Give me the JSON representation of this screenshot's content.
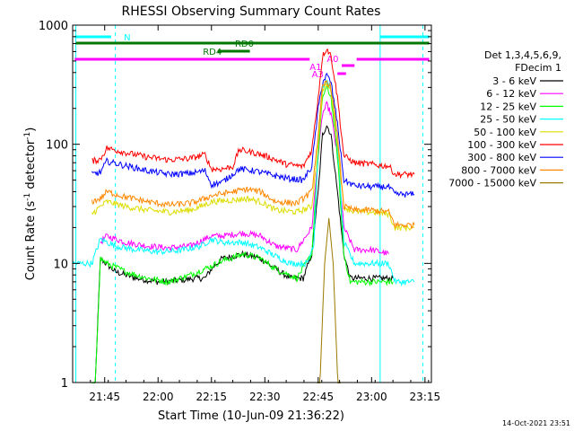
{
  "chart_data": {
    "type": "line",
    "title": "RHESSI Observing Summary Count Rates",
    "xlabel": "Start Time (10-Jun-09 21:36:22)",
    "ylabel_main": "Count Rate (s",
    "ylabel_sup": "-1",
    "ylabel_tail": " detector",
    "ylabel_close": ")",
    "yscale": "log",
    "ylim": [
      1,
      1000
    ],
    "xlim_minutes": [
      21.6,
      23.28
    ],
    "x_ticks": [
      {
        "label": "21:45",
        "t": 21.75
      },
      {
        "label": "22:00",
        "t": 22.0
      },
      {
        "label": "22:15",
        "t": 22.25
      },
      {
        "label": "22:30",
        "t": 22.5
      },
      {
        "label": "22:45",
        "t": 22.75
      },
      {
        "label": "23:00",
        "t": 23.0
      },
      {
        "label": "23:15",
        "t": 23.25
      }
    ],
    "y_ticks": [
      {
        "label": "1",
        "v": 1
      },
      {
        "label": "10",
        "v": 10
      },
      {
        "label": "100",
        "v": 100
      },
      {
        "label": "1000",
        "v": 1000
      }
    ],
    "legend_header": [
      "Det 1,3,4,5,6,9,",
      "FDecim 1"
    ],
    "series": [
      {
        "name": "3 - 6 keV",
        "color": "#000000",
        "points": [
          [
            21.69,
            0.2
          ],
          [
            21.73,
            11
          ],
          [
            21.8,
            8.5
          ],
          [
            21.9,
            7.5
          ],
          [
            22.0,
            7
          ],
          [
            22.1,
            7.2
          ],
          [
            22.18,
            7.5
          ],
          [
            22.22,
            7.5
          ],
          [
            22.25,
            9
          ],
          [
            22.3,
            11
          ],
          [
            22.4,
            12
          ],
          [
            22.48,
            11
          ],
          [
            22.55,
            9
          ],
          [
            22.62,
            7.5
          ],
          [
            22.68,
            7.5
          ],
          [
            22.72,
            12
          ],
          [
            22.75,
            40
          ],
          [
            22.77,
            120
          ],
          [
            22.79,
            145
          ],
          [
            22.81,
            120
          ],
          [
            22.84,
            40
          ],
          [
            22.87,
            12
          ],
          [
            22.9,
            7.5
          ],
          [
            22.95,
            7.5
          ],
          [
            23.05,
            7.5
          ],
          [
            23.1,
            7.5
          ]
        ]
      },
      {
        "name": "6 - 12 keV",
        "color": "#ff00ff",
        "points": [
          [
            21.73,
            15
          ],
          [
            21.76,
            17
          ],
          [
            21.85,
            15
          ],
          [
            21.95,
            14
          ],
          [
            22.05,
            13.5
          ],
          [
            22.15,
            14
          ],
          [
            22.25,
            17
          ],
          [
            22.3,
            17
          ],
          [
            22.4,
            18
          ],
          [
            22.48,
            17
          ],
          [
            22.55,
            14
          ],
          [
            22.65,
            13
          ],
          [
            22.72,
            20
          ],
          [
            22.75,
            80
          ],
          [
            22.77,
            180
          ],
          [
            22.79,
            215
          ],
          [
            22.81,
            180
          ],
          [
            22.84,
            80
          ],
          [
            22.87,
            20
          ],
          [
            22.92,
            13
          ],
          [
            23.0,
            13
          ],
          [
            23.08,
            12
          ]
        ]
      },
      {
        "name": "12 - 25 keV",
        "color": "#00ff00",
        "points": [
          [
            21.69,
            0.2
          ],
          [
            21.73,
            11
          ],
          [
            21.76,
            10
          ],
          [
            21.85,
            8.5
          ],
          [
            21.95,
            7.5
          ],
          [
            22.05,
            7
          ],
          [
            22.15,
            8
          ],
          [
            22.25,
            9.5
          ],
          [
            22.3,
            10.5
          ],
          [
            22.4,
            12
          ],
          [
            22.48,
            11
          ],
          [
            22.55,
            9
          ],
          [
            22.65,
            7.5
          ],
          [
            22.72,
            12
          ],
          [
            22.75,
            80
          ],
          [
            22.77,
            250
          ],
          [
            22.79,
            300
          ],
          [
            22.81,
            250
          ],
          [
            22.84,
            80
          ],
          [
            22.87,
            12
          ],
          [
            22.9,
            7
          ],
          [
            23.0,
            7
          ],
          [
            23.1,
            7
          ]
        ]
      },
      {
        "name": "25 - 50 keV",
        "color": "#00ffff",
        "points": [
          [
            21.6,
            10
          ],
          [
            21.69,
            10
          ],
          [
            21.73,
            16
          ],
          [
            21.8,
            14
          ],
          [
            21.9,
            13
          ],
          [
            22.0,
            12.5
          ],
          [
            22.1,
            12.8
          ],
          [
            22.2,
            14
          ],
          [
            22.25,
            16
          ],
          [
            22.3,
            15
          ],
          [
            22.4,
            15
          ],
          [
            22.48,
            13.5
          ],
          [
            22.55,
            11.5
          ],
          [
            22.62,
            10
          ],
          [
            22.7,
            10
          ],
          [
            22.73,
            15
          ],
          [
            22.75,
            100
          ],
          [
            22.77,
            300
          ],
          [
            22.79,
            330
          ],
          [
            22.81,
            300
          ],
          [
            22.84,
            100
          ],
          [
            22.87,
            15
          ],
          [
            22.92,
            10
          ],
          [
            23.0,
            10
          ],
          [
            23.08,
            10
          ],
          [
            23.11,
            7
          ],
          [
            23.2,
            7
          ]
        ]
      },
      {
        "name": "50 - 100 keV",
        "color": "#dddd00",
        "points": [
          [
            21.69,
            26
          ],
          [
            21.73,
            30
          ],
          [
            21.76,
            33
          ],
          [
            21.85,
            30
          ],
          [
            21.95,
            28
          ],
          [
            22.05,
            27
          ],
          [
            22.15,
            28
          ],
          [
            22.2,
            30
          ],
          [
            22.25,
            33
          ],
          [
            22.35,
            34
          ],
          [
            22.42,
            35
          ],
          [
            22.48,
            33
          ],
          [
            22.55,
            28
          ],
          [
            22.65,
            27
          ],
          [
            22.72,
            30
          ],
          [
            22.75,
            100
          ],
          [
            22.77,
            280
          ],
          [
            22.79,
            320
          ],
          [
            22.81,
            280
          ],
          [
            22.84,
            100
          ],
          [
            22.87,
            30
          ],
          [
            22.92,
            27
          ],
          [
            23.0,
            27
          ],
          [
            23.08,
            26
          ],
          [
            23.11,
            20
          ],
          [
            23.2,
            20
          ]
        ]
      },
      {
        "name": "100 - 300 keV",
        "color": "#ff0000",
        "points": [
          [
            21.69,
            72
          ],
          [
            21.73,
            75
          ],
          [
            21.76,
            93
          ],
          [
            21.85,
            85
          ],
          [
            21.95,
            78
          ],
          [
            22.05,
            74
          ],
          [
            22.15,
            76
          ],
          [
            22.22,
            82
          ],
          [
            22.25,
            62
          ],
          [
            22.3,
            62
          ],
          [
            22.35,
            65
          ],
          [
            22.38,
            90
          ],
          [
            22.45,
            85
          ],
          [
            22.52,
            78
          ],
          [
            22.6,
            68
          ],
          [
            22.68,
            65
          ],
          [
            22.72,
            90
          ],
          [
            22.75,
            250
          ],
          [
            22.77,
            550
          ],
          [
            22.79,
            640
          ],
          [
            22.81,
            550
          ],
          [
            22.84,
            250
          ],
          [
            22.87,
            80
          ],
          [
            22.92,
            70
          ],
          [
            23.0,
            68
          ],
          [
            23.05,
            66
          ],
          [
            23.08,
            66
          ],
          [
            23.11,
            56
          ],
          [
            23.2,
            56
          ]
        ]
      },
      {
        "name": "300 - 800 keV",
        "color": "#0000ff",
        "points": [
          [
            21.69,
            56
          ],
          [
            21.73,
            58
          ],
          [
            21.76,
            72
          ],
          [
            21.85,
            66
          ],
          [
            21.95,
            60
          ],
          [
            22.05,
            56
          ],
          [
            22.15,
            57
          ],
          [
            22.22,
            60
          ],
          [
            22.25,
            46
          ],
          [
            22.3,
            48
          ],
          [
            22.38,
            62
          ],
          [
            22.45,
            60
          ],
          [
            22.52,
            56
          ],
          [
            22.6,
            52
          ],
          [
            22.68,
            50
          ],
          [
            22.72,
            65
          ],
          [
            22.75,
            200
          ],
          [
            22.77,
            330
          ],
          [
            22.79,
            380
          ],
          [
            22.81,
            330
          ],
          [
            22.84,
            150
          ],
          [
            22.87,
            50
          ],
          [
            22.92,
            45
          ],
          [
            23.0,
            44
          ],
          [
            23.08,
            44
          ],
          [
            23.11,
            38
          ],
          [
            23.2,
            38
          ]
        ]
      },
      {
        "name": "800 - 7000 keV",
        "color": "#ff8800",
        "points": [
          [
            21.69,
            33
          ],
          [
            21.73,
            35
          ],
          [
            21.76,
            40
          ],
          [
            21.85,
            36
          ],
          [
            21.95,
            33
          ],
          [
            22.05,
            31
          ],
          [
            22.15,
            32
          ],
          [
            22.2,
            34
          ],
          [
            22.25,
            37
          ],
          [
            22.35,
            40
          ],
          [
            22.42,
            42
          ],
          [
            22.48,
            40
          ],
          [
            22.55,
            33
          ],
          [
            22.65,
            32
          ],
          [
            22.72,
            40
          ],
          [
            22.75,
            120
          ],
          [
            22.77,
            300
          ],
          [
            22.79,
            340
          ],
          [
            22.81,
            300
          ],
          [
            22.84,
            120
          ],
          [
            22.87,
            30
          ],
          [
            22.92,
            28
          ],
          [
            23.0,
            28
          ],
          [
            23.08,
            27
          ],
          [
            23.11,
            21
          ],
          [
            23.2,
            21
          ]
        ]
      },
      {
        "name": "7000 - 15000 keV",
        "color": "#9b7a00",
        "points": [
          [
            22.745,
            0.5
          ],
          [
            22.76,
            1.2
          ],
          [
            22.78,
            10
          ],
          [
            22.8,
            24
          ],
          [
            22.82,
            10
          ],
          [
            22.84,
            1.2
          ],
          [
            22.855,
            0.5
          ]
        ]
      }
    ],
    "annotations": {
      "attenuator_labels": [
        "A1",
        "A3",
        "A0"
      ],
      "state_labels": [
        "RD0",
        "RD4",
        "N"
      ],
      "day_night_color": "#00ffff",
      "saa_color": "#ff00ff",
      "rd_color": "#007700"
    },
    "footer_date": "14-Oct-2021 23:51"
  }
}
